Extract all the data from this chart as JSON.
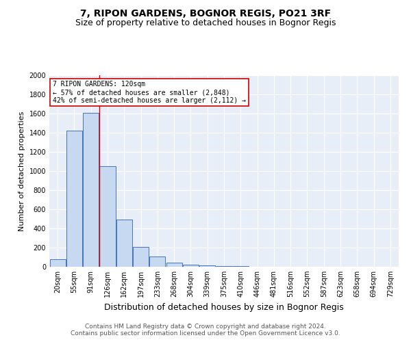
{
  "title": "7, RIPON GARDENS, BOGNOR REGIS, PO21 3RF",
  "subtitle": "Size of property relative to detached houses in Bognor Regis",
  "xlabel": "Distribution of detached houses by size in Bognor Regis",
  "ylabel": "Number of detached properties",
  "categories": [
    "20sqm",
    "55sqm",
    "91sqm",
    "126sqm",
    "162sqm",
    "197sqm",
    "233sqm",
    "268sqm",
    "304sqm",
    "339sqm",
    "375sqm",
    "410sqm",
    "446sqm",
    "481sqm",
    "516sqm",
    "552sqm",
    "587sqm",
    "623sqm",
    "658sqm",
    "694sqm",
    "729sqm"
  ],
  "values": [
    80,
    1420,
    1610,
    1050,
    490,
    205,
    105,
    45,
    25,
    15,
    10,
    10,
    0,
    0,
    0,
    0,
    0,
    0,
    0,
    0,
    0
  ],
  "bar_color": "#c6d9f0",
  "bar_edge_color": "#4472c4",
  "background_color": "#e8eef8",
  "grid_color": "#ffffff",
  "vline_color": "#cc0000",
  "annotation_text": "7 RIPON GARDENS: 120sqm\n← 57% of detached houses are smaller (2,848)\n42% of semi-detached houses are larger (2,112) →",
  "annotation_box_color": "#ffffff",
  "annotation_box_edge": "#cc0000",
  "footer": "Contains HM Land Registry data © Crown copyright and database right 2024.\nContains public sector information licensed under the Open Government Licence v3.0.",
  "ylim": [
    0,
    2000
  ],
  "yticks": [
    0,
    200,
    400,
    600,
    800,
    1000,
    1200,
    1400,
    1600,
    1800,
    2000
  ],
  "title_fontsize": 10,
  "subtitle_fontsize": 9,
  "xlabel_fontsize": 9,
  "ylabel_fontsize": 8,
  "tick_fontsize": 7,
  "footer_fontsize": 6.5
}
